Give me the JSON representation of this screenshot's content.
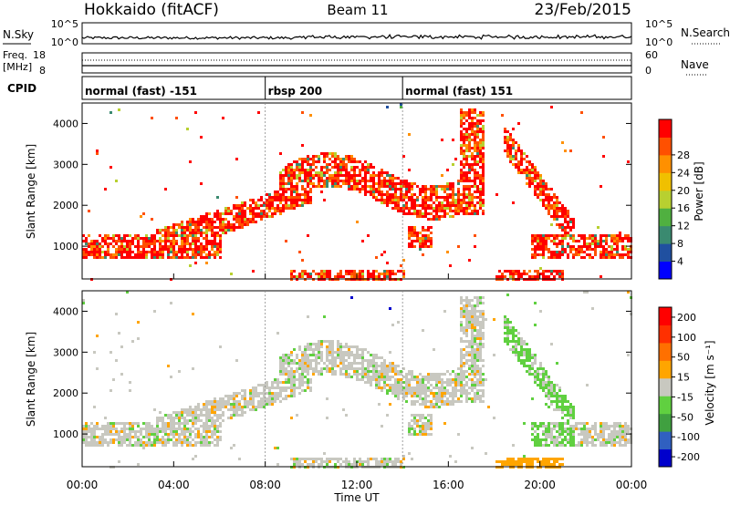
{
  "header": {
    "title_left": "Hokkaido (fitACF)",
    "title_center": "Beam 11",
    "title_right": "23/Feb/2015"
  },
  "strips": {
    "nsky": {
      "label": "N.Sky",
      "right_label": "N.Search",
      "ticks": [
        "10^5",
        "10^0"
      ]
    },
    "freq": {
      "label_line1": "Freq.",
      "label_line2": "[MHz]",
      "left_ticks": [
        "18",
        "8"
      ],
      "right_label": "Nave",
      "right_ticks": [
        "60",
        "0"
      ]
    },
    "cpid": {
      "label": "CPID",
      "segments": [
        {
          "name": "normal (fast) -151",
          "start_hour": 0
        },
        {
          "name": "rbsp 200",
          "start_hour": 8
        },
        {
          "name": "normal (fast) 151",
          "start_hour": 14
        }
      ]
    }
  },
  "chart_data": [
    {
      "type": "heatmap",
      "name": "power",
      "ylabel": "Slant Range [km]",
      "ylim": [
        200,
        4500
      ],
      "yticks": [
        "1000",
        "2000",
        "3000",
        "4000"
      ],
      "xlim_hours": [
        0,
        24
      ],
      "colorbar": {
        "label": "Power [dB]",
        "ticks": [
          "4",
          "8",
          "12",
          "16",
          "20",
          "24",
          "28"
        ],
        "colors": [
          "#0000ff",
          "#2050a0",
          "#3a8a70",
          "#50b040",
          "#b8d030",
          "#f0c000",
          "#ff9000",
          "#ff5000",
          "#ff0000"
        ]
      }
    },
    {
      "type": "heatmap",
      "name": "velocity",
      "ylabel": "Slant Range [km]",
      "ylim": [
        200,
        4500
      ],
      "yticks": [
        "1000",
        "2000",
        "3000",
        "4000"
      ],
      "xlim_hours": [
        0,
        24
      ],
      "colorbar": {
        "label": "Velocity [m s⁻¹]",
        "ticks": [
          "200",
          "100",
          "50",
          "15",
          "-15",
          "-50",
          "-100",
          "-200"
        ],
        "colors": [
          "#0000cc",
          "#3060c0",
          "#40a040",
          "#60d040",
          "#c8c8c0",
          "#ffa500",
          "#ff7000",
          "#ff3000",
          "#ff0000"
        ]
      }
    }
  ],
  "xaxis": {
    "label": "Time UT",
    "ticks": [
      "00:00",
      "04:00",
      "08:00",
      "12:00",
      "16:00",
      "20:00",
      "00:00"
    ]
  }
}
